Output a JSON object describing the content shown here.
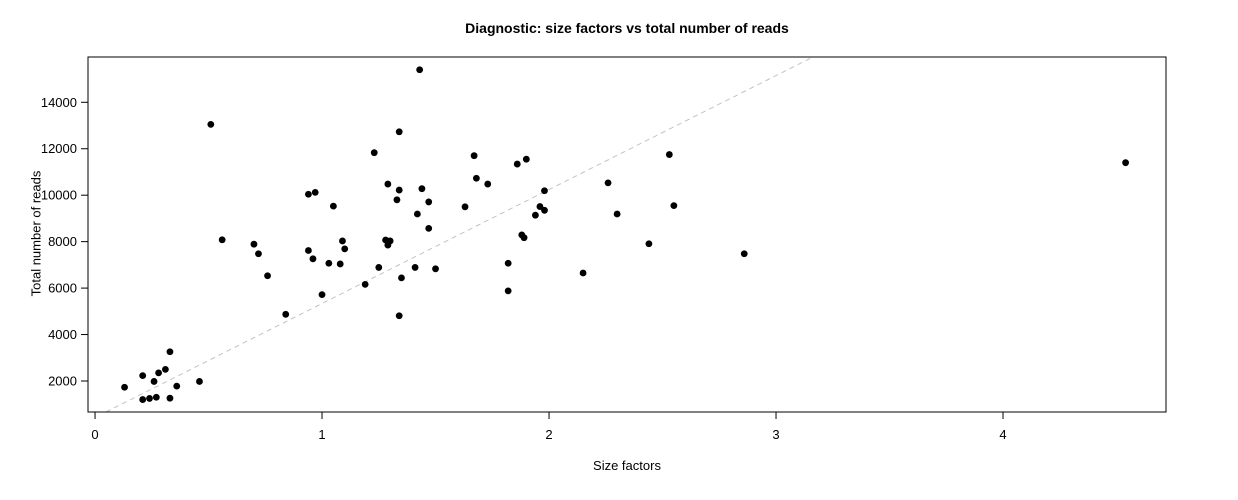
{
  "chart_data": {
    "type": "scatter",
    "title": "Diagnostic: size factors vs total number of reads",
    "xlabel": "Size factors",
    "ylabel": "Total number of reads",
    "x_ticks": [
      0,
      1,
      2,
      3,
      4
    ],
    "y_ticks": [
      2000,
      4000,
      6000,
      8000,
      10000,
      12000,
      14000
    ],
    "x_range": [
      -0.031,
      4.718
    ],
    "y_range": [
      665,
      15950
    ],
    "grid": false,
    "legend": null,
    "point_color": "#000000",
    "ref_line": {
      "x1": 0.048,
      "y1": 665,
      "x2": 3.163,
      "y2": 15950,
      "style": "dashed",
      "color": "#c3c3c3"
    },
    "points": [
      [
        0.13,
        1730
      ],
      [
        0.21,
        2230
      ],
      [
        0.26,
        1980
      ],
      [
        0.28,
        2350
      ],
      [
        0.31,
        2500
      ],
      [
        0.33,
        3260
      ],
      [
        0.36,
        1780
      ],
      [
        0.21,
        1200
      ],
      [
        0.24,
        1250
      ],
      [
        0.27,
        1300
      ],
      [
        0.33,
        1260
      ],
      [
        0.46,
        1980
      ],
      [
        0.51,
        13050
      ],
      [
        0.56,
        8080
      ],
      [
        0.7,
        7890
      ],
      [
        0.72,
        7480
      ],
      [
        0.76,
        6530
      ],
      [
        0.84,
        4870
      ],
      [
        0.94,
        10040
      ],
      [
        0.97,
        10120
      ],
      [
        0.94,
        7620
      ],
      [
        0.96,
        7260
      ],
      [
        1.0,
        5720
      ],
      [
        1.03,
        7070
      ],
      [
        1.05,
        9530
      ],
      [
        1.08,
        7040
      ],
      [
        1.09,
        8030
      ],
      [
        1.1,
        7690
      ],
      [
        1.19,
        6160
      ],
      [
        1.23,
        11830
      ],
      [
        1.25,
        6890
      ],
      [
        1.28,
        8070
      ],
      [
        1.3,
        8030
      ],
      [
        1.29,
        7850
      ],
      [
        1.29,
        10480
      ],
      [
        1.33,
        9800
      ],
      [
        1.34,
        12730
      ],
      [
        1.34,
        10220
      ],
      [
        1.34,
        4810
      ],
      [
        1.35,
        6440
      ],
      [
        1.41,
        6890
      ],
      [
        1.5,
        6830
      ],
      [
        1.42,
        9190
      ],
      [
        1.43,
        15400
      ],
      [
        1.44,
        10280
      ],
      [
        1.47,
        9710
      ],
      [
        1.47,
        8570
      ],
      [
        1.63,
        9500
      ],
      [
        1.67,
        11700
      ],
      [
        1.68,
        10730
      ],
      [
        1.73,
        10480
      ],
      [
        1.82,
        7070
      ],
      [
        1.82,
        5880
      ],
      [
        1.86,
        11340
      ],
      [
        1.9,
        11550
      ],
      [
        1.88,
        8290
      ],
      [
        1.89,
        8170
      ],
      [
        1.94,
        9140
      ],
      [
        1.96,
        9510
      ],
      [
        1.98,
        9350
      ],
      [
        1.98,
        10190
      ],
      [
        2.15,
        6650
      ],
      [
        2.26,
        10530
      ],
      [
        2.3,
        9190
      ],
      [
        2.44,
        7910
      ],
      [
        2.53,
        11750
      ],
      [
        2.55,
        9550
      ],
      [
        2.86,
        7480
      ],
      [
        4.54,
        11400
      ]
    ]
  }
}
